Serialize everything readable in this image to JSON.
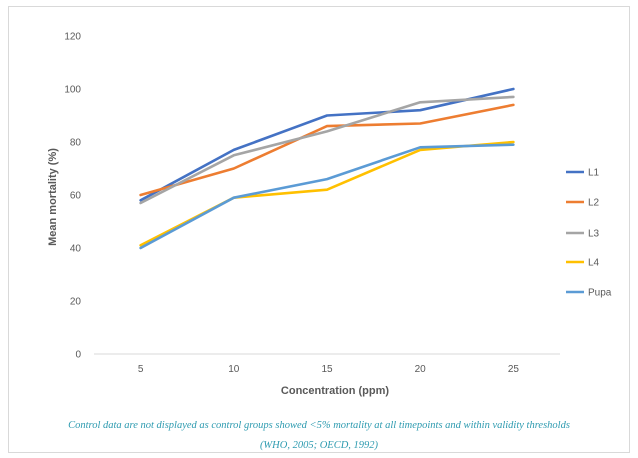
{
  "chart_data": {
    "type": "line",
    "xlabel": "Concentration (ppm)",
    "ylabel": "Mean mortality (%)",
    "categories": [
      "5",
      "10",
      "15",
      "20",
      "25"
    ],
    "ylim": [
      0,
      120
    ],
    "yticks": [
      0,
      20,
      40,
      60,
      80,
      100,
      120
    ],
    "grid": false,
    "legend_position": "right",
    "series": [
      {
        "name": "L1",
        "color": "#4472c4",
        "values": [
          58,
          77,
          90,
          92,
          100
        ]
      },
      {
        "name": "L2",
        "color": "#ed7d31",
        "values": [
          60,
          70,
          86,
          87,
          94
        ]
      },
      {
        "name": "L3",
        "color": "#a5a5a5",
        "values": [
          57,
          75,
          84,
          95,
          97
        ]
      },
      {
        "name": "L4",
        "color": "#ffc000",
        "values": [
          41,
          59,
          62,
          77,
          80
        ]
      },
      {
        "name": "Pupa",
        "color": "#5b9bd5",
        "values": [
          40,
          59,
          66,
          78,
          79
        ]
      }
    ]
  },
  "footnote": {
    "line1": "Control data are not displayed as control groups showed <5% mortality at all timepoints and within validity thresholds",
    "line2": "(WHO, 2005; OECD, 1992)"
  }
}
